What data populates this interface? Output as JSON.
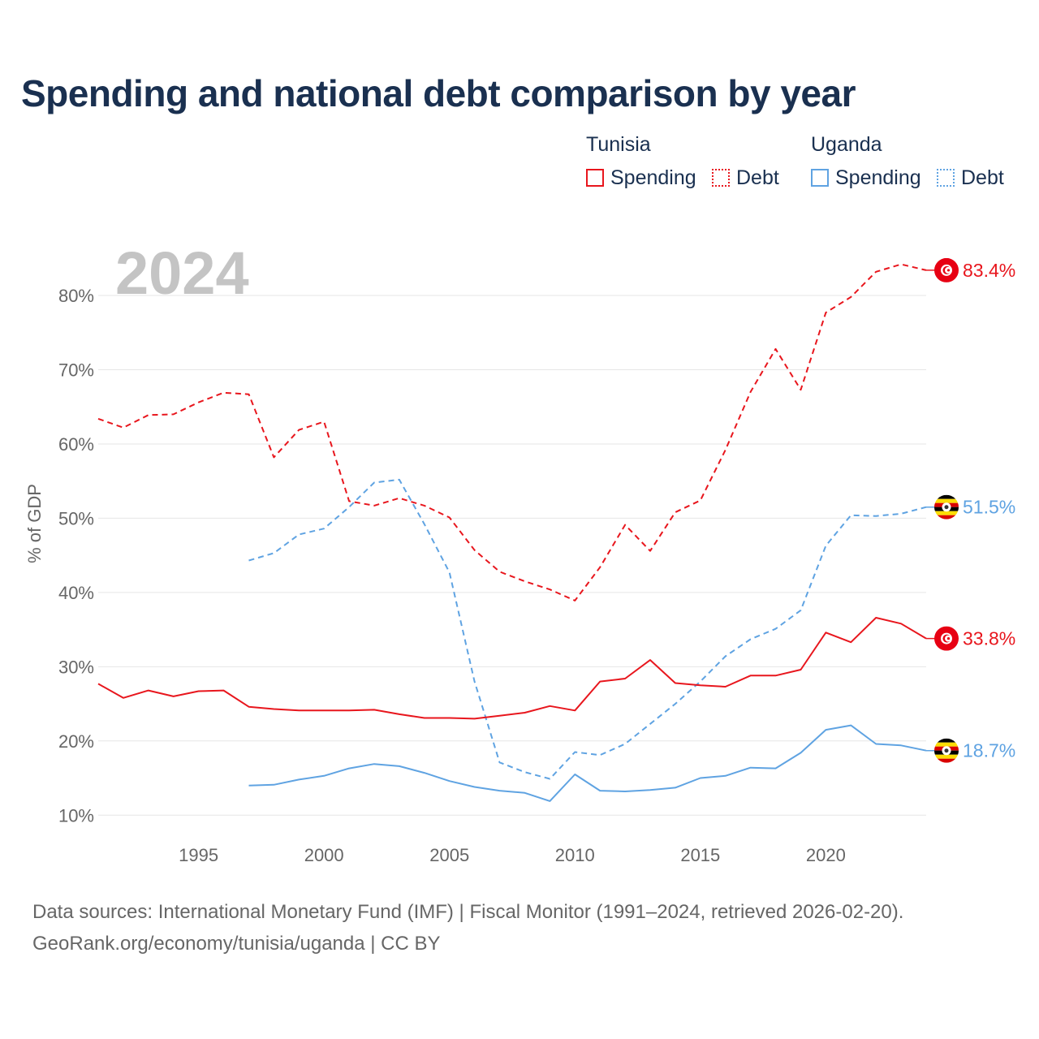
{
  "title": "Spending and national debt comparison by year",
  "legend": {
    "groups": [
      {
        "country": "Tunisia",
        "items": [
          "Spending",
          "Debt"
        ]
      },
      {
        "country": "Uganda",
        "items": [
          "Spending",
          "Debt"
        ]
      }
    ]
  },
  "colors": {
    "tunisia": "#e8161d",
    "uganda": "#5fa3e2",
    "title": "#1a3050",
    "axis_text": "#666666",
    "year_label": "#c4c4c4",
    "grid": "#e6e6e6"
  },
  "sources": {
    "line1": "Data sources: International Monetary Fund (IMF) | Fiscal Monitor (1991–2024, retrieved 2026-02-20).",
    "line2": "GeoRank.org/economy/tunisia/uganda | CC BY"
  },
  "chart_data": {
    "type": "line",
    "title": "Spending and national debt comparison by year",
    "year_label": "2024",
    "xlabel": "",
    "ylabel": "% of GDP",
    "xlim": [
      1991,
      2024
    ],
    "ylim": [
      5,
      87
    ],
    "x_ticks": [
      "1995",
      "2000",
      "2005",
      "2010",
      "2015",
      "2020"
    ],
    "y_ticks": [
      "10%",
      "20%",
      "30%",
      "40%",
      "50%",
      "60%",
      "70%",
      "80%"
    ],
    "y_tick_values": [
      10,
      20,
      30,
      40,
      50,
      60,
      70,
      80
    ],
    "grid": true,
    "legend_position": "top-right",
    "series": [
      {
        "name": "Tunisia Debt",
        "country": "Tunisia",
        "measure": "Debt",
        "dashed": true,
        "color": "#e8161d",
        "x": [
          1991,
          1992,
          1993,
          1994,
          1995,
          1996,
          1997,
          1998,
          1999,
          2000,
          2001,
          2002,
          2003,
          2004,
          2005,
          2006,
          2007,
          2008,
          2009,
          2010,
          2011,
          2012,
          2013,
          2014,
          2015,
          2016,
          2017,
          2018,
          2019,
          2020,
          2021,
          2022,
          2023,
          2024
        ],
        "values": [
          63.4,
          62.2,
          63.9,
          64.0,
          65.6,
          66.9,
          66.7,
          58.2,
          61.9,
          63.0,
          52.3,
          51.7,
          52.7,
          51.7,
          50.1,
          45.7,
          42.8,
          41.5,
          40.4,
          38.9,
          43.4,
          49.1,
          45.6,
          50.8,
          52.4,
          59.2,
          67.0,
          72.8,
          67.3,
          77.7,
          79.8,
          83.2,
          84.2,
          83.4
        ],
        "end_label": "83.4%"
      },
      {
        "name": "Uganda Debt",
        "country": "Uganda",
        "measure": "Debt",
        "dashed": true,
        "color": "#5fa3e2",
        "x": [
          1997,
          1998,
          1999,
          2000,
          2001,
          2002,
          2003,
          2004,
          2005,
          2006,
          2007,
          2008,
          2009,
          2010,
          2011,
          2012,
          2013,
          2014,
          2015,
          2016,
          2017,
          2018,
          2019,
          2020,
          2021,
          2022,
          2023,
          2024
        ],
        "values": [
          44.3,
          45.3,
          47.8,
          48.6,
          51.5,
          54.8,
          55.2,
          49.2,
          42.7,
          28.0,
          17.1,
          15.8,
          14.9,
          18.5,
          18.1,
          19.6,
          22.3,
          25.0,
          28.0,
          31.4,
          33.7,
          35.1,
          37.6,
          46.3,
          50.4,
          50.3,
          50.6,
          51.5
        ],
        "end_label": "51.5%"
      },
      {
        "name": "Tunisia Spending",
        "country": "Tunisia",
        "measure": "Spending",
        "dashed": false,
        "color": "#e8161d",
        "x": [
          1991,
          1992,
          1993,
          1994,
          1995,
          1996,
          1997,
          1998,
          1999,
          2000,
          2001,
          2002,
          2003,
          2004,
          2005,
          2006,
          2007,
          2008,
          2009,
          2010,
          2011,
          2012,
          2013,
          2014,
          2015,
          2016,
          2017,
          2018,
          2019,
          2020,
          2021,
          2022,
          2023,
          2024
        ],
        "values": [
          27.7,
          25.8,
          26.8,
          26.0,
          26.7,
          26.8,
          24.6,
          24.3,
          24.1,
          24.1,
          24.1,
          24.2,
          23.6,
          23.1,
          23.1,
          23.0,
          23.4,
          23.8,
          24.7,
          24.1,
          28.0,
          28.4,
          30.9,
          27.8,
          27.5,
          27.3,
          28.8,
          28.8,
          29.6,
          34.6,
          33.3,
          36.6,
          35.8,
          33.8
        ],
        "end_label": "33.8%"
      },
      {
        "name": "Uganda Spending",
        "country": "Uganda",
        "measure": "Spending",
        "dashed": false,
        "color": "#5fa3e2",
        "x": [
          1997,
          1998,
          1999,
          2000,
          2001,
          2002,
          2003,
          2004,
          2005,
          2006,
          2007,
          2008,
          2009,
          2010,
          2011,
          2012,
          2013,
          2014,
          2015,
          2016,
          2017,
          2018,
          2019,
          2020,
          2021,
          2022,
          2023,
          2024
        ],
        "values": [
          14.0,
          14.1,
          14.8,
          15.3,
          16.3,
          16.9,
          16.6,
          15.7,
          14.6,
          13.8,
          13.3,
          13.0,
          11.9,
          15.5,
          13.3,
          13.2,
          13.4,
          13.7,
          15.0,
          15.3,
          16.4,
          16.3,
          18.4,
          21.5,
          22.1,
          19.6,
          19.4,
          18.7
        ],
        "end_label": "18.7%"
      }
    ]
  }
}
